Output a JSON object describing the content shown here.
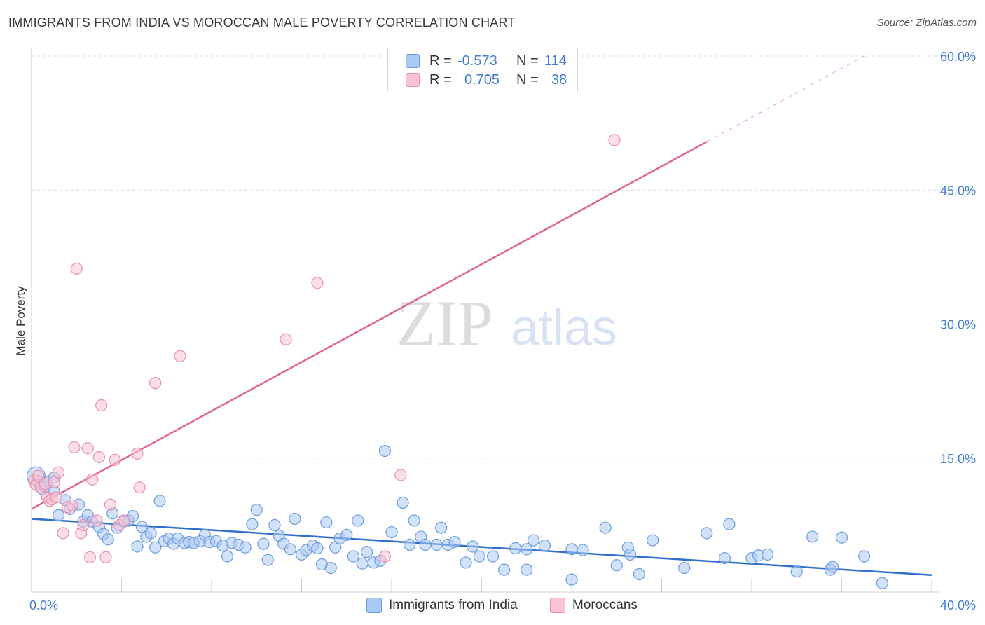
{
  "title": "IMMIGRANTS FROM INDIA VS MOROCCAN MALE POVERTY CORRELATION CHART",
  "source": "Source: ZipAtlas.com",
  "watermark": {
    "zip": "ZIP",
    "atlas": "atlas"
  },
  "legend": {
    "rows": [
      {
        "r_label": "R =",
        "r_value": "-0.573",
        "n_label": "N =",
        "n_value": "114",
        "color": "#a9c8f4",
        "border": "#6d9de0"
      },
      {
        "r_label": "R =",
        "r_value": "0.705",
        "n_label": "N =",
        "n_value": "38",
        "color": "#f9c3d4",
        "border": "#e890ad"
      }
    ]
  },
  "bottom_legend": {
    "india": {
      "label": "Immigrants from India",
      "color": "#a9c8f4",
      "border": "#6d9de0"
    },
    "moroccans": {
      "label": "Moroccans",
      "color": "#f9c3d4",
      "border": "#e890ad"
    }
  },
  "chart_data": {
    "type": "scatter",
    "title": "IMMIGRANTS FROM INDIA VS MOROCCAN MALE POVERTY CORRELATION CHART",
    "xlabel": "",
    "ylabel": "Male Poverty",
    "xlim": [
      0,
      40
    ],
    "ylim": [
      0,
      60
    ],
    "x_tick_labels": {
      "min": "0.0%",
      "max": "40.0%"
    },
    "y_ticks": [
      {
        "value": 15,
        "label": "15.0%"
      },
      {
        "value": 30,
        "label": "30.0%"
      },
      {
        "value": 45,
        "label": "45.0%"
      },
      {
        "value": 60,
        "label": "60.0%"
      }
    ],
    "series": [
      {
        "name": "Immigrants from India",
        "color": "#6d9de0",
        "fill": "#a9c8f4",
        "trend": {
          "x0": 0,
          "y0": 8.2,
          "x1": 40,
          "y1": 1.9,
          "color": "#2e6fce"
        },
        "points": [
          [
            0.2,
            13.0
          ],
          [
            0.3,
            12.4
          ],
          [
            0.4,
            12.0
          ],
          [
            0.5,
            11.5
          ],
          [
            0.7,
            12.3
          ],
          [
            1.0,
            11.3
          ],
          [
            1.0,
            12.8
          ],
          [
            1.2,
            8.6
          ],
          [
            1.5,
            10.3
          ],
          [
            1.7,
            9.3
          ],
          [
            2.1,
            9.8
          ],
          [
            2.3,
            7.9
          ],
          [
            2.5,
            8.6
          ],
          [
            2.7,
            7.9
          ],
          [
            3.0,
            7.3
          ],
          [
            3.2,
            6.5
          ],
          [
            3.4,
            5.9
          ],
          [
            3.6,
            8.8
          ],
          [
            3.8,
            7.2
          ],
          [
            4.1,
            7.9
          ],
          [
            4.3,
            8.0
          ],
          [
            4.5,
            8.5
          ],
          [
            4.7,
            5.1
          ],
          [
            4.9,
            7.3
          ],
          [
            5.1,
            6.2
          ],
          [
            5.3,
            6.6
          ],
          [
            5.5,
            5.0
          ],
          [
            5.7,
            10.2
          ],
          [
            5.9,
            5.7
          ],
          [
            6.1,
            6.0
          ],
          [
            6.3,
            5.4
          ],
          [
            6.5,
            6.0
          ],
          [
            6.8,
            5.5
          ],
          [
            7.0,
            5.6
          ],
          [
            7.2,
            5.5
          ],
          [
            7.5,
            5.7
          ],
          [
            7.7,
            6.4
          ],
          [
            7.9,
            5.6
          ],
          [
            8.2,
            5.7
          ],
          [
            8.5,
            5.2
          ],
          [
            8.7,
            4.0
          ],
          [
            8.9,
            5.5
          ],
          [
            9.2,
            5.3
          ],
          [
            9.5,
            5.0
          ],
          [
            9.8,
            7.6
          ],
          [
            10.0,
            9.2
          ],
          [
            10.3,
            5.4
          ],
          [
            10.5,
            3.6
          ],
          [
            10.8,
            7.5
          ],
          [
            11.0,
            6.3
          ],
          [
            11.2,
            5.4
          ],
          [
            11.5,
            4.8
          ],
          [
            11.7,
            8.2
          ],
          [
            12.0,
            4.2
          ],
          [
            12.2,
            4.7
          ],
          [
            12.5,
            5.2
          ],
          [
            12.7,
            4.9
          ],
          [
            12.9,
            3.1
          ],
          [
            13.1,
            7.8
          ],
          [
            13.3,
            2.7
          ],
          [
            13.5,
            5.0
          ],
          [
            13.7,
            6.0
          ],
          [
            14.0,
            6.4
          ],
          [
            14.3,
            4.0
          ],
          [
            14.5,
            8.0
          ],
          [
            14.7,
            3.2
          ],
          [
            14.9,
            4.5
          ],
          [
            15.2,
            3.3
          ],
          [
            15.5,
            3.5
          ],
          [
            15.7,
            15.8
          ],
          [
            16.0,
            6.7
          ],
          [
            16.5,
            10.0
          ],
          [
            16.8,
            5.3
          ],
          [
            17.0,
            8.0
          ],
          [
            17.3,
            6.2
          ],
          [
            17.5,
            5.3
          ],
          [
            18.0,
            5.3
          ],
          [
            18.2,
            7.2
          ],
          [
            18.5,
            5.3
          ],
          [
            18.8,
            5.6
          ],
          [
            19.3,
            3.3
          ],
          [
            19.6,
            5.1
          ],
          [
            19.9,
            4.0
          ],
          [
            20.5,
            4.0
          ],
          [
            21.0,
            2.5
          ],
          [
            21.5,
            4.9
          ],
          [
            22.0,
            4.8
          ],
          [
            22.0,
            2.5
          ],
          [
            22.3,
            5.8
          ],
          [
            22.8,
            5.2
          ],
          [
            24.0,
            4.8
          ],
          [
            24.0,
            1.4
          ],
          [
            24.5,
            4.7
          ],
          [
            25.5,
            7.2
          ],
          [
            26.0,
            3.0
          ],
          [
            26.5,
            5.0
          ],
          [
            26.6,
            4.2
          ],
          [
            27.0,
            2.0
          ],
          [
            27.6,
            5.8
          ],
          [
            29.0,
            2.7
          ],
          [
            30.0,
            6.6
          ],
          [
            30.8,
            3.8
          ],
          [
            31.0,
            7.6
          ],
          [
            32.0,
            3.8
          ],
          [
            32.3,
            4.1
          ],
          [
            32.7,
            4.2
          ],
          [
            34.0,
            2.3
          ],
          [
            34.7,
            6.2
          ],
          [
            35.5,
            2.5
          ],
          [
            35.6,
            2.8
          ],
          [
            36.0,
            6.1
          ],
          [
            37.0,
            4.0
          ],
          [
            37.8,
            1.0
          ],
          [
            0.6,
            11.8
          ]
        ]
      },
      {
        "name": "Moroccans",
        "color": "#e890ad",
        "fill": "#f9c3d4",
        "trend": {
          "x0": 0,
          "y0": 9.3,
          "x1": 30,
          "y1": 50.4,
          "color": "#e06690",
          "dashed_to": {
            "x": 37,
            "y": 60.0
          }
        },
        "points": [
          [
            0.1,
            12.5
          ],
          [
            0.2,
            12.0
          ],
          [
            0.3,
            13.0
          ],
          [
            0.4,
            11.7
          ],
          [
            0.6,
            12.1
          ],
          [
            0.7,
            10.6
          ],
          [
            0.8,
            10.2
          ],
          [
            0.9,
            10.4
          ],
          [
            1.0,
            12.3
          ],
          [
            1.1,
            10.6
          ],
          [
            1.2,
            13.4
          ],
          [
            1.4,
            6.6
          ],
          [
            1.6,
            9.5
          ],
          [
            1.8,
            9.7
          ],
          [
            1.9,
            16.2
          ],
          [
            2.0,
            36.2
          ],
          [
            2.2,
            6.6
          ],
          [
            2.3,
            7.5
          ],
          [
            2.5,
            16.1
          ],
          [
            2.6,
            3.9
          ],
          [
            2.7,
            12.6
          ],
          [
            2.9,
            8.0
          ],
          [
            3.0,
            15.1
          ],
          [
            3.1,
            20.9
          ],
          [
            3.3,
            3.9
          ],
          [
            3.5,
            9.8
          ],
          [
            3.7,
            14.8
          ],
          [
            3.9,
            7.5
          ],
          [
            4.1,
            8.0
          ],
          [
            4.7,
            15.5
          ],
          [
            4.8,
            11.7
          ],
          [
            5.5,
            23.4
          ],
          [
            6.6,
            26.4
          ],
          [
            11.3,
            28.3
          ],
          [
            12.7,
            34.6
          ],
          [
            15.7,
            4.0
          ],
          [
            16.4,
            13.1
          ],
          [
            25.9,
            50.6
          ]
        ]
      }
    ]
  }
}
